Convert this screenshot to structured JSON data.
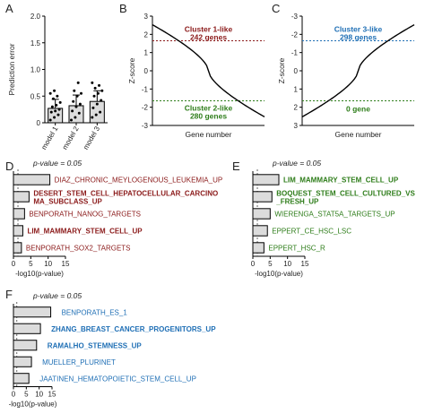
{
  "panel_letters": [
    "A",
    "B",
    "C",
    "D",
    "E",
    "F"
  ],
  "colors": {
    "red": "#8b1a1a",
    "green": "#2e7d1a",
    "blue": "#1f6fb5",
    "bar_fill": "#dcdcdc",
    "black": "#000000"
  },
  "chart_data": [
    {
      "panel": "A",
      "type": "bar",
      "ylabel": "Prediction error",
      "categories": [
        "model 1",
        "model 2",
        "model 3"
      ],
      "values": [
        0.27,
        0.32,
        0.4
      ],
      "error": [
        0.17,
        0.2,
        0.2
      ],
      "ylim": [
        0,
        2
      ],
      "yticks": [
        "0",
        "0.5",
        "1.0",
        "1.5",
        "2.0"
      ],
      "points": [
        [
          0.05,
          0.1,
          0.15,
          0.2,
          0.22,
          0.25,
          0.3,
          0.33,
          0.38,
          0.45,
          0.5,
          0.55,
          0.6
        ],
        [
          0.05,
          0.1,
          0.18,
          0.22,
          0.3,
          0.35,
          0.4,
          0.5,
          0.55,
          0.6,
          0.75
        ],
        [
          0.1,
          0.15,
          0.2,
          0.28,
          0.35,
          0.42,
          0.5,
          0.55,
          0.6,
          0.65,
          0.7,
          0.75
        ]
      ]
    },
    {
      "panel": "B",
      "type": "line",
      "xlabel": "Gene number",
      "ylabel": "Z-score",
      "ylim": [
        -3,
        3
      ],
      "yticks": [
        "-3",
        "-2",
        "-1",
        "0",
        "1",
        "2",
        "3"
      ],
      "thresholds": [
        1.65,
        -1.65
      ],
      "annotations": [
        {
          "text": "Cluster 1-like",
          "color": "red"
        },
        {
          "text": "242 genes",
          "color": "red"
        },
        {
          "text": "Cluster 2-like",
          "color": "green"
        },
        {
          "text": "280 genes",
          "color": "green"
        }
      ]
    },
    {
      "panel": "C",
      "type": "line",
      "xlabel": "Gene number",
      "ylabel": "Z-score",
      "ylim": [
        3,
        -3
      ],
      "yticks": [
        "-3",
        "-2",
        "-1",
        "0",
        "1",
        "2",
        "3"
      ],
      "thresholds": [
        -1.65,
        1.65
      ],
      "annotations": [
        {
          "text": "Cluster 3-like",
          "color": "blue"
        },
        {
          "text": "298 genes",
          "color": "blue"
        },
        {
          "text": "0 gene",
          "color": "green"
        }
      ]
    },
    {
      "panel": "D",
      "type": "bar",
      "orientation": "horizontal",
      "pvalue_label": "p-value = 0.05",
      "xlabel": "-log10(p-value)",
      "xticks": [
        "0",
        "5",
        "10",
        "15"
      ],
      "xlim": [
        0,
        15
      ],
      "rows": [
        {
          "label": "DIAZ_CHRONIC_MEYLOGENOUS_LEUKEMIA_UP",
          "value": 10.5,
          "bold": false,
          "color": "red"
        },
        {
          "label": "DESERT_STEM_CELL_HEPATOCELLULAR_CARCINO",
          "label2": "MA_SUBCLASS_UP",
          "value": 4.5,
          "bold": true,
          "color": "red"
        },
        {
          "label": "BENPORATH_NANOG_TARGETS",
          "value": 3.2,
          "bold": false,
          "color": "red"
        },
        {
          "label": "LIM_MAMMARY_STEM_CELL_UP",
          "value": 2.7,
          "bold": true,
          "color": "red"
        },
        {
          "label": "BENPORATH_SOX2_TARGETS",
          "value": 2.3,
          "bold": false,
          "color": "red"
        }
      ]
    },
    {
      "panel": "E",
      "type": "bar",
      "orientation": "horizontal",
      "pvalue_label": "p-value = 0.05",
      "xlabel": "-log10(p-value)",
      "xticks": [
        "0",
        "5",
        "10",
        "15"
      ],
      "xlim": [
        0,
        15
      ],
      "rows": [
        {
          "label": "LIM_MAMMARY_STEM_CELL_UP",
          "value": 7.5,
          "bold": true,
          "color": "green"
        },
        {
          "label": "BOQUEST_STEM_CELL_CULTURED_VS",
          "label2": "_FRESH_UP",
          "value": 5.5,
          "bold": true,
          "color": "green"
        },
        {
          "label": "WIERENGA_STAT5A_TARGETS_UP",
          "value": 5.0,
          "bold": false,
          "color": "green"
        },
        {
          "label": "EPPERT_CE_HSC_LSC",
          "value": 4.2,
          "bold": false,
          "color": "green"
        },
        {
          "label": "EPPERT_HSC_R",
          "value": 3.2,
          "bold": false,
          "color": "green"
        }
      ]
    },
    {
      "panel": "F",
      "type": "bar",
      "orientation": "horizontal",
      "pvalue_label": "p-value = 0.05",
      "xlabel": "-log10(p-value)",
      "xticks": [
        "0",
        "5",
        "10",
        "15"
      ],
      "xlim": [
        0,
        15
      ],
      "rows": [
        {
          "label": "BENPORATH_ES_1",
          "value": 14.5,
          "bold": false,
          "color": "blue"
        },
        {
          "label": "ZHANG_BREAST_CANCER_PROGENITORS_UP",
          "value": 10.5,
          "bold": true,
          "color": "blue"
        },
        {
          "label": "RAMALHO_STEMNESS_UP",
          "value": 9.0,
          "bold": true,
          "color": "blue"
        },
        {
          "label": "MUELLER_PLURINET",
          "value": 7.0,
          "bold": false,
          "color": "blue"
        },
        {
          "label": "JAATINEN_HEMATOPOIETIC_STEM_CELL_UP",
          "value": 6.0,
          "bold": false,
          "color": "blue"
        }
      ]
    }
  ]
}
